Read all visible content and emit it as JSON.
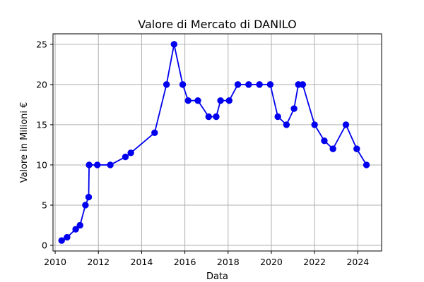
{
  "chart_data": {
    "type": "line",
    "title": "Valore di Mercato di DANILO",
    "xlabel": "Data",
    "ylabel": "Valore in Milioni €",
    "xlim": [
      2009.9,
      2025.1
    ],
    "ylim": [
      -0.7,
      26.3
    ],
    "xticks": [
      2010,
      2012,
      2014,
      2016,
      2018,
      2020,
      2022,
      2024
    ],
    "xtick_labels": [
      "2010",
      "2012",
      "2014",
      "2016",
      "2018",
      "2020",
      "2022",
      "2024"
    ],
    "yticks": [
      0,
      5,
      10,
      15,
      20,
      25
    ],
    "ytick_labels": [
      "0",
      "5",
      "10",
      "15",
      "20",
      "25"
    ],
    "grid": true,
    "color": "#0000ee",
    "series": [
      {
        "x": [
          2010.3,
          2010.55,
          2010.95,
          2011.15,
          2011.4,
          2011.55,
          2011.57,
          2011.95,
          2012.55,
          2013.25,
          2013.5,
          2014.6,
          2015.15,
          2015.5,
          2015.9,
          2016.15,
          2016.6,
          2017.1,
          2017.45,
          2017.65,
          2018.05,
          2018.45,
          2018.95,
          2019.45,
          2019.95,
          2020.3,
          2020.7,
          2021.05,
          2021.25,
          2021.45,
          2022.0,
          2022.45,
          2022.85,
          2023.45,
          2023.95,
          2024.4
        ],
        "y": [
          0.6,
          1.0,
          2.0,
          2.5,
          5.0,
          6.0,
          10.0,
          10.0,
          10.0,
          11.0,
          11.5,
          14.0,
          20.0,
          25.0,
          20.0,
          18.0,
          18.0,
          16.0,
          16.0,
          18.0,
          18.0,
          20.0,
          20.0,
          20.0,
          20.0,
          16.0,
          15.0,
          17.0,
          20.0,
          20.0,
          15.0,
          13.0,
          12.0,
          15.0,
          12.0,
          10.0
        ]
      }
    ]
  }
}
